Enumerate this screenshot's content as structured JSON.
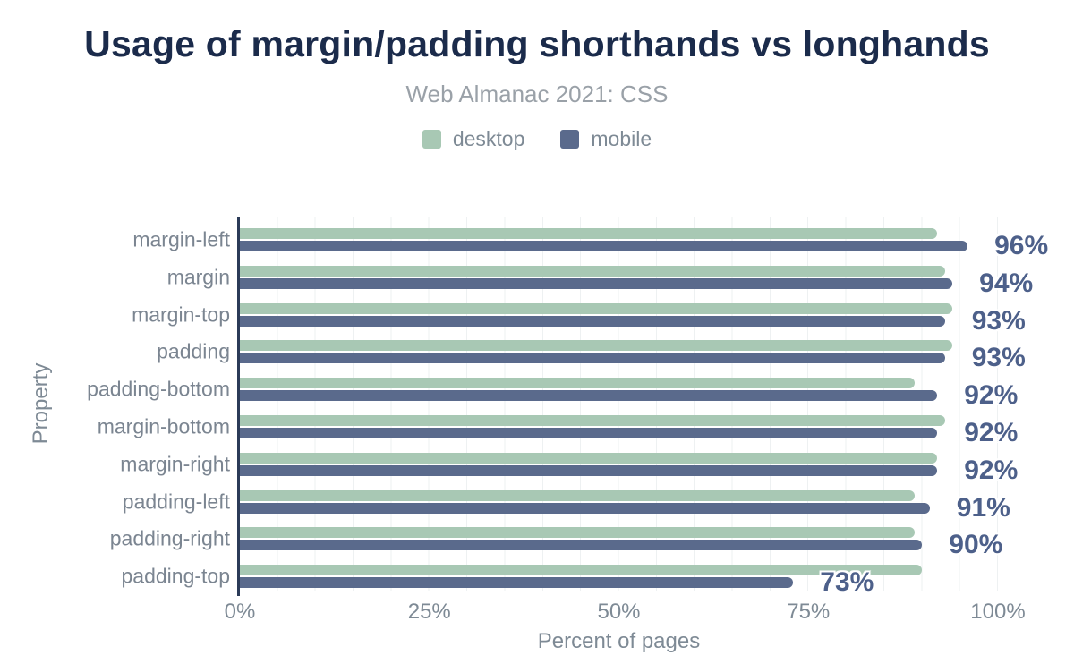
{
  "header": {
    "title": "Usage of margin/padding shorthands vs longhands",
    "subtitle": "Web Almanac 2021: CSS"
  },
  "colors": {
    "desktop": "#a8c8b4",
    "mobile": "#5a6a8c",
    "title": "#1b2b4b",
    "axis_line": "#2b3b58",
    "value_label": "#4d608a",
    "muted_text": "#7e8a95",
    "gridline": "#eef1f2"
  },
  "chart_data": {
    "type": "bar",
    "orientation": "horizontal",
    "title": "Usage of margin/padding shorthands vs longhands",
    "subtitle": "Web Almanac 2021: CSS",
    "xlabel": "Percent of pages",
    "ylabel": "Property",
    "xlim": [
      0,
      100
    ],
    "x_ticks": [
      "0%",
      "25%",
      "50%",
      "75%",
      "100%"
    ],
    "gridline_step_pct": 5,
    "grid": "vertical-only",
    "legend_position": "top-center",
    "categories": [
      "margin-left",
      "margin",
      "margin-top",
      "padding",
      "padding-bottom",
      "margin-bottom",
      "margin-right",
      "padding-left",
      "padding-right",
      "padding-top"
    ],
    "series": [
      {
        "name": "desktop",
        "values": [
          92,
          93,
          94,
          94,
          89,
          93,
          92,
          89,
          89,
          90
        ]
      },
      {
        "name": "mobile",
        "values": [
          96,
          94,
          93,
          93,
          92,
          92,
          92,
          91,
          90,
          73
        ]
      }
    ],
    "value_labels": [
      "96%",
      "94%",
      "93%",
      "93%",
      "92%",
      "92%",
      "92%",
      "91%",
      "90%",
      "73%"
    ],
    "value_labels_series": "mobile"
  },
  "legend": {
    "items": [
      {
        "label": "desktop",
        "color": "#a8c8b4"
      },
      {
        "label": "mobile",
        "color": "#5a6a8c"
      }
    ]
  }
}
